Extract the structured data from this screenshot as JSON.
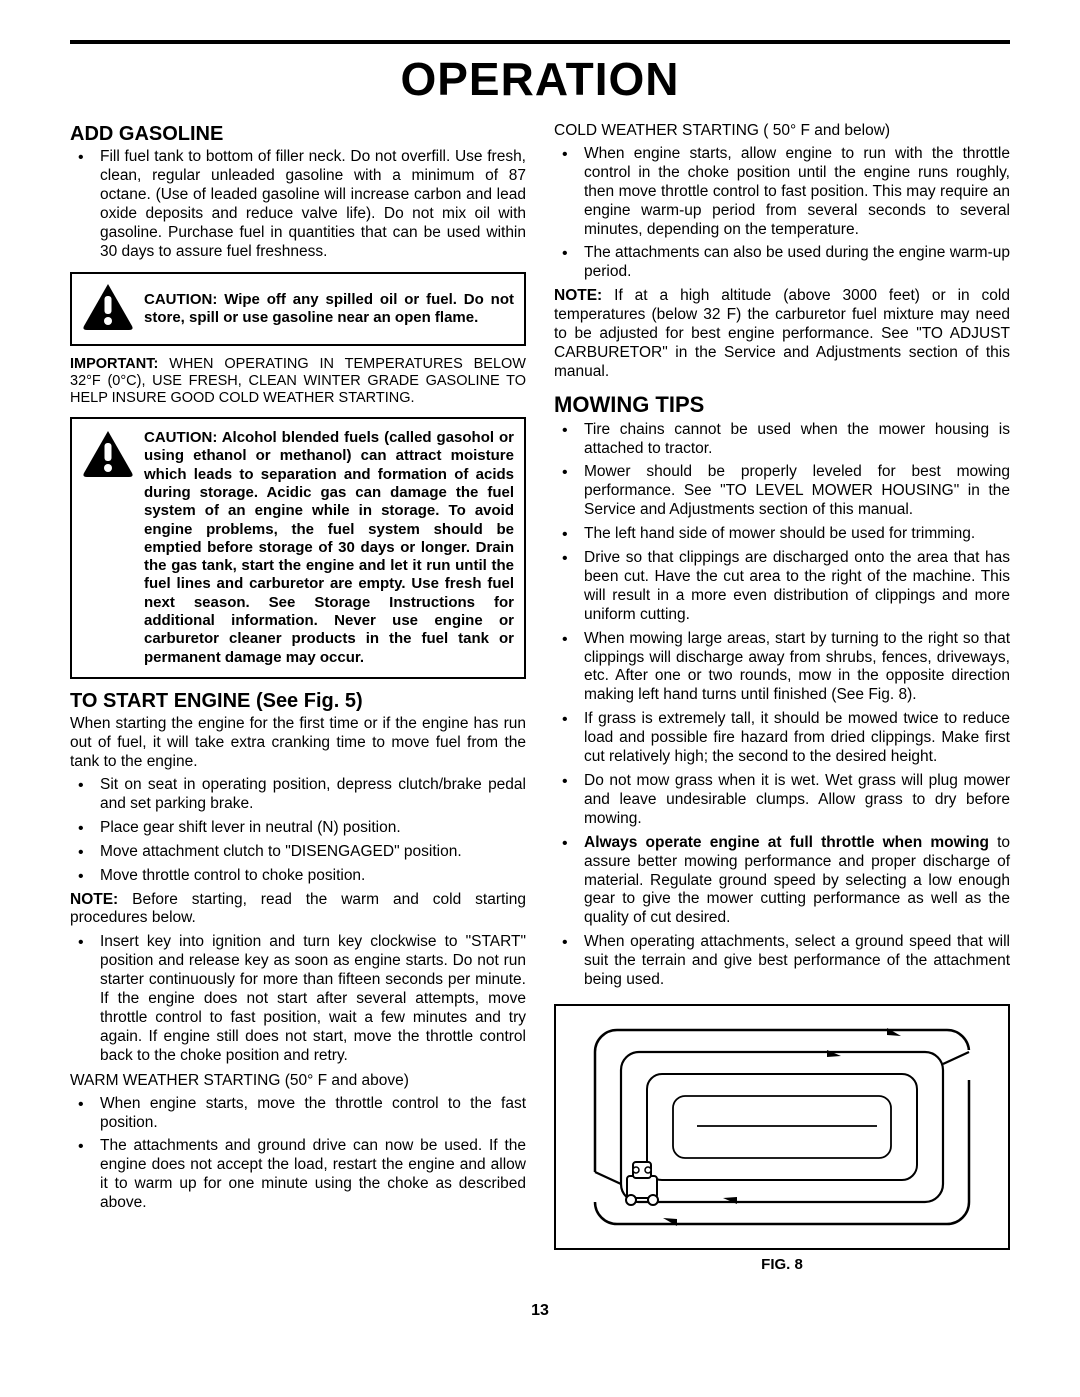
{
  "title": "OPERATION",
  "page_number": "13",
  "left": {
    "h_gas": "ADD GASOLINE",
    "gas_bullet": "Fill fuel tank to bottom of filler neck. Do not overfill.  Use fresh, clean, regular unleaded gasoline with a minimum of 87 octane.  (Use of  leaded gasoline will increase carbon and lead oxide deposits and reduce valve life). Do not mix oil with gasoline.  Purchase fuel in quantities that can be used within 30 days to assure fuel freshness.",
    "caution1": "CAUTION:  Wipe off any spilled oil or fuel.  Do not store, spill or use gasoline near an open flame.",
    "important_label": "IMPORTANT:",
    "important_body": "  WHEN OPERATING IN TEMPERATURES BELOW 32°F (0°C), USE FRESH, CLEAN WINTER GRADE GASOLINE TO HELP INSURE GOOD COLD WEATHER STARTING.",
    "caution2": "CAUTION:  Alcohol blended fuels (called gasohol or using ethanol or methanol) can attract moisture which leads to separation and formation of acids during storage.  Acidic gas can damage the fuel system of an engine while in storage.  To avoid engine problems, the fuel system should be emptied before storage of 30 days or longer.  Drain the gas tank, start the engine and let it run until the fuel lines and carburetor are empty.  Use fresh fuel next season.  See Storage Instructions for additional information. Never use engine or carburetor cleaner products in the fuel tank or permanent damage may occur.",
    "h_start": "TO START ENGINE (See Fig. 5)",
    "start_intro": "When starting the engine for the first time or if the engine has run out of fuel, it will take extra cranking time to move fuel from the tank to the engine.",
    "start_bullets": [
      "Sit on seat in operating position, depress clutch/brake pedal and set parking brake.",
      "Place gear shift lever in neutral (N) position.",
      "Move attachment clutch to \"DISENGAGED\" position.",
      "Move throttle control to choke position."
    ],
    "note_label": "NOTE:",
    "note1": "  Before starting, read the warm and cold starting procedures below.",
    "ignition_bullet": "Insert key into ignition and turn key clockwise to \"START\" position and release key as soon as engine starts. Do not run starter continuously for more than fifteen seconds per minute. If the engine does not start after several attempts, move throttle control to fast position, wait a few minutes and try again. If engine still does not start, move the throttle control back to the choke position and retry.",
    "warm_head": "WARM WEATHER STARTING (50° F and above)",
    "warm_bullets": [
      "When engine starts, move the throttle control to the fast position.",
      "The attachments and ground drive can now be used. If the engine does not accept the load, restart the engine and allow it to warm up for one minute using the choke as described above."
    ]
  },
  "right": {
    "cold_head": "COLD WEATHER STARTING ( 50° F and below)",
    "cold_bullets": [
      "When engine starts, allow engine to run with the throttle control in the choke position until the engine runs roughly, then move throttle control to fast position. This may require an engine warm-up period from several seconds to several minutes, depending on the temperature.",
      "The attachments can also be used during the engine warm-up period."
    ],
    "note_label": "NOTE:",
    "note_alt": "  If at a high altitude (above 3000 feet) or in cold temperatures (below 32 F) the carburetor fuel mixture may need to be adjusted for best engine performance. See \"TO ADJUST CARBURETOR\" in the Service and Adjustments section of this manual.",
    "h_mow": "MOWING TIPS",
    "mow_bullets": [
      {
        "text": "Tire chains cannot be used when the mower housing is attached to tractor."
      },
      {
        "text": "Mower should be properly leveled for best mowing performance. See \"TO LEVEL MOWER HOUSING\" in the Service and Adjustments section of this manual."
      },
      {
        "text": "The left hand side of mower should be used for trimming."
      },
      {
        "text": "Drive so that clippings are discharged onto the area that has been cut.  Have the cut area to the right of the machine.  This will result in a more even distribution of clippings and more uniform cutting."
      },
      {
        "text": "When mowing large areas, start by turning to the right so that clippings will discharge away from shrubs, fences, driveways, etc.  After one or two rounds, mow in the opposite direction making left hand turns until finished (See Fig. 8)."
      },
      {
        "text": "If grass is extremely tall, it should be mowed twice to reduce load and possible fire hazard from dried clippings.  Make first cut relatively high; the second to the desired height."
      },
      {
        "text": "Do not mow grass when it is wet.  Wet grass will plug mower and leave undesirable clumps.  Allow grass to dry before mowing."
      },
      {
        "bold": "Always operate engine at full throttle when mowing",
        "rest": " to assure better mowing performance and proper discharge of material.  Regulate ground speed by selecting a low enough gear to give the mower cutting performance as well as the quality of cut desired."
      },
      {
        "text": "When operating attachments, select a ground speed that will suit the terrain and give best performance of the attachment being used."
      }
    ],
    "fig_caption": "FIG. 8"
  }
}
